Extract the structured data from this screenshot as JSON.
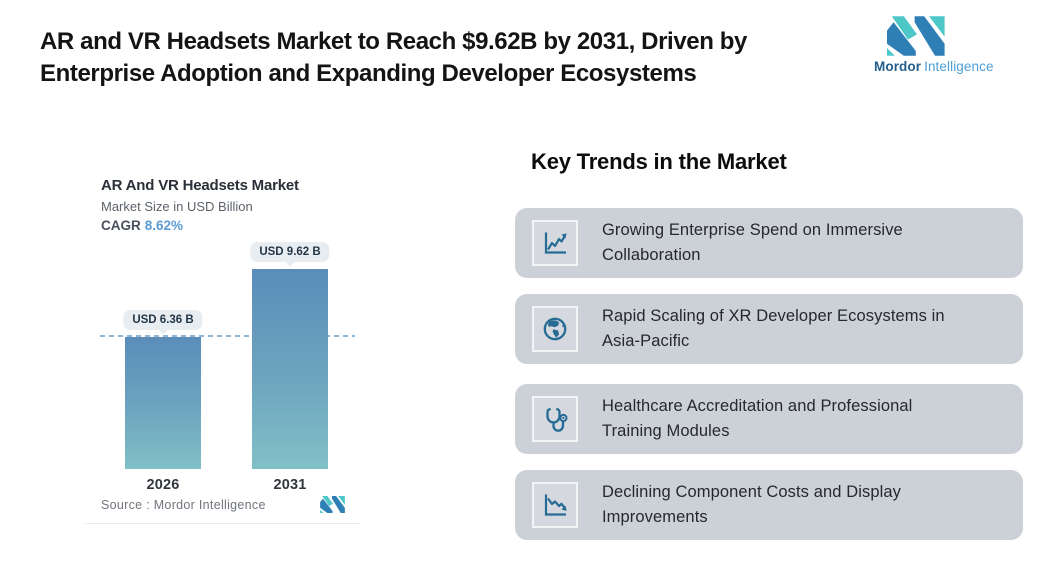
{
  "header": {
    "title": "AR and VR Headsets Market to Reach $9.62B by 2031, Driven by\nEnterprise Adoption and Expanding Developer Ecosystems"
  },
  "brand": {
    "name_bold": "Mordor",
    "name_light": "Intelligence"
  },
  "chart_card": {
    "title": "AR And VR Headsets Market",
    "subtitle": "Market Size in USD Billion",
    "cagr_label": "CAGR",
    "cagr_value": "8.62%",
    "source_text": "Source :  Mordor Intelligence"
  },
  "chart_data": {
    "type": "bar",
    "title": "AR And VR Headsets Market",
    "subtitle": "Market Size in USD Billion",
    "cagr_percent": "8.62%",
    "categories": [
      "2026",
      "2031"
    ],
    "values": [
      6.36,
      9.62
    ],
    "value_labels": [
      "USD 6.36 B",
      "USD 9.62 B"
    ],
    "unit": "USD Billion",
    "ylim": [
      0,
      9.62
    ],
    "reference_line_value": 6.36,
    "grid": "off",
    "legend": "none"
  },
  "trends": {
    "heading": "Key Trends in the Market",
    "items": [
      {
        "icon": "line-chart-up-icon",
        "text": "Growing Enterprise Spend on Immersive\nCollaboration"
      },
      {
        "icon": "globe-icon",
        "text": "Rapid Scaling of XR Developer Ecosystems in\nAsia-Pacific"
      },
      {
        "icon": "stethoscope-icon",
        "text": "Healthcare Accreditation and Professional\nTraining Modules"
      },
      {
        "icon": "line-chart-down-icon",
        "text": "Declining Component Costs and Display\nImprovements"
      }
    ]
  },
  "colors": {
    "brand_teal": "#4ec7c9",
    "brand_blue": "#2e7fb5",
    "icon_blue": "#266b93",
    "bar_gradient_top": "#5a8db9",
    "bar_gradient_bottom": "#80c0c6",
    "trend_card_gray": "#ccd1d8",
    "cagr_blue": "#5b9bd5",
    "dashed_line_blue": "#8fb4d6"
  }
}
